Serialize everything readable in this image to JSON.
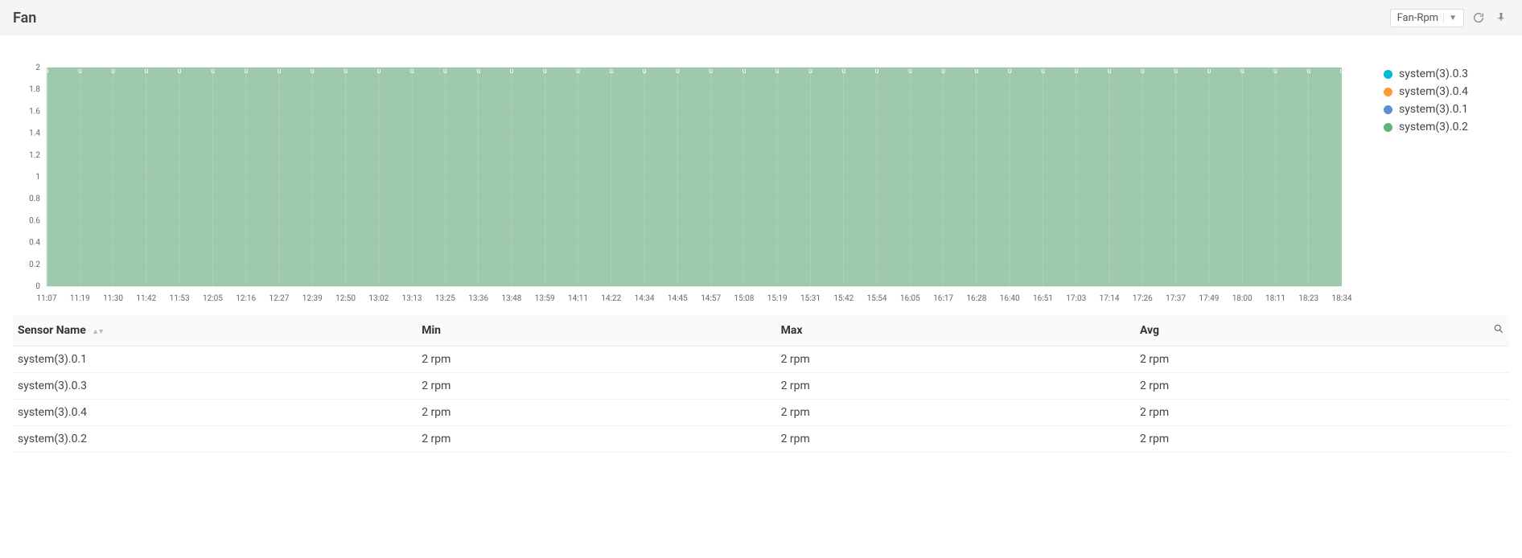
{
  "header": {
    "title": "Fan",
    "dropdown_label": "Fan-Rpm"
  },
  "chart": {
    "type": "area",
    "background_color": "#ffffff",
    "area_fill": "#8ebf9e",
    "area_opacity": 0.85,
    "grid_color": "#e8e8e8",
    "ylim": [
      0,
      2
    ],
    "ytick_step": 0.2,
    "y_ticks": [
      "0",
      "0.2",
      "0.4",
      "0.6",
      "0.8",
      "1",
      "1.2",
      "1.4",
      "1.6",
      "1.8",
      "2"
    ],
    "x_ticks": [
      "11:07",
      "11:19",
      "11:30",
      "11:42",
      "11:53",
      "12:05",
      "12:16",
      "12:27",
      "12:39",
      "12:50",
      "13:02",
      "13:13",
      "13:25",
      "13:36",
      "13:48",
      "13:59",
      "14:11",
      "14:22",
      "14:34",
      "14:45",
      "14:57",
      "15:08",
      "15:19",
      "15:31",
      "15:42",
      "15:54",
      "16:05",
      "16:17",
      "16:28",
      "16:40",
      "16:51",
      "17:03",
      "17:14",
      "17:26",
      "17:37",
      "17:49",
      "18:00",
      "18:11",
      "18:23",
      "18:34"
    ],
    "series_value": 2,
    "legend": [
      {
        "label": "system(3).0.3",
        "color": "#00b8d9"
      },
      {
        "label": "system(3).0.4",
        "color": "#ff9933"
      },
      {
        "label": "system(3).0.1",
        "color": "#5b8fd6"
      },
      {
        "label": "system(3).0.2",
        "color": "#5fb573"
      }
    ]
  },
  "table": {
    "columns": [
      "Sensor Name",
      "Min",
      "Max",
      "Avg"
    ],
    "rows": [
      {
        "name": "system(3).0.1",
        "min": "2 rpm",
        "max": "2 rpm",
        "avg": "2 rpm"
      },
      {
        "name": "system(3).0.3",
        "min": "2 rpm",
        "max": "2 rpm",
        "avg": "2 rpm"
      },
      {
        "name": "system(3).0.4",
        "min": "2 rpm",
        "max": "2 rpm",
        "avg": "2 rpm"
      },
      {
        "name": "system(3).0.2",
        "min": "2 rpm",
        "max": "2 rpm",
        "avg": "2 rpm"
      }
    ]
  }
}
